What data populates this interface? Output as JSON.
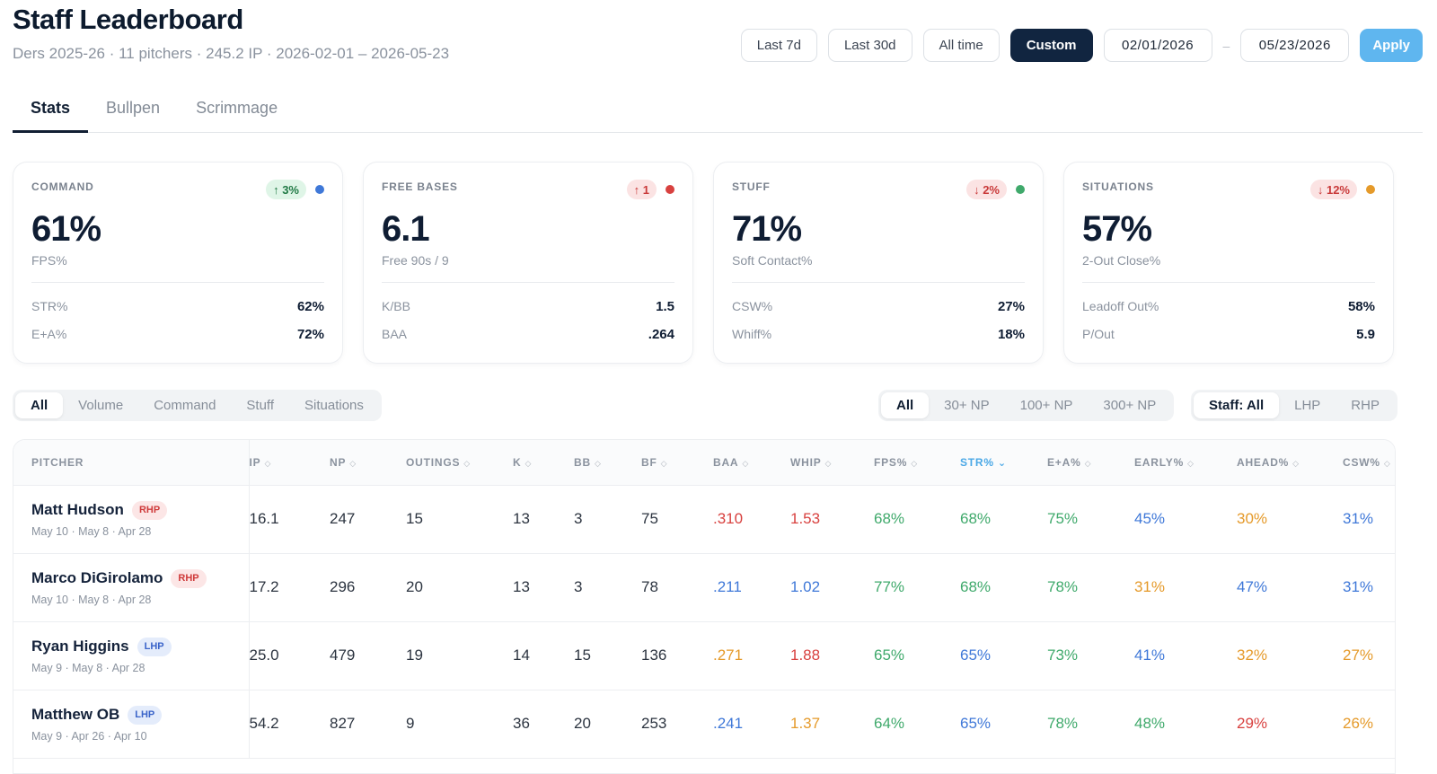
{
  "header": {
    "title": "Staff Leaderboard",
    "subtitle": "Ders 2025-26 · 11 pitchers · 245.2 IP · 2026-02-01 – 2026-05-23"
  },
  "range": {
    "buttons": [
      "Last 7d",
      "Last 30d",
      "All time",
      "Custom"
    ],
    "active": "Custom",
    "start_date": "02/01/2026",
    "separator": "–",
    "end_date": "05/23/2026",
    "apply_label": "Apply"
  },
  "tabs": [
    {
      "label": "Stats",
      "active": true
    },
    {
      "label": "Bullpen",
      "active": false
    },
    {
      "label": "Scrimmage",
      "active": false
    }
  ],
  "cards": [
    {
      "label": "COMMAND",
      "badge": "↑ 3%",
      "badge_kind": "up-green",
      "dot_color": "#3f78d8",
      "value": "61%",
      "sub": "FPS%",
      "rows": [
        {
          "k": "STR%",
          "v": "62%"
        },
        {
          "k": "E+A%",
          "v": "72%"
        }
      ]
    },
    {
      "label": "FREE BASES",
      "badge": "↑ 1",
      "badge_kind": "up-red",
      "dot_color": "#d8413f",
      "value": "6.1",
      "sub": "Free 90s / 9",
      "rows": [
        {
          "k": "K/BB",
          "v": "1.5"
        },
        {
          "k": "BAA",
          "v": ".264"
        }
      ]
    },
    {
      "label": "STUFF",
      "badge": "↓ 2%",
      "badge_kind": "down-red",
      "dot_color": "#3fa96b",
      "value": "71%",
      "sub": "Soft Contact%",
      "rows": [
        {
          "k": "CSW%",
          "v": "27%"
        },
        {
          "k": "Whiff%",
          "v": "18%"
        }
      ]
    },
    {
      "label": "SITUATIONS",
      "badge": "↓ 12%",
      "badge_kind": "down-red",
      "dot_color": "#e59a2a",
      "value": "57%",
      "sub": "2-Out Close%",
      "rows": [
        {
          "k": "Leadoff Out%",
          "v": "58%"
        },
        {
          "k": "P/Out",
          "v": "5.9"
        }
      ]
    }
  ],
  "filters": {
    "category": [
      "All",
      "Volume",
      "Command",
      "Stuff",
      "Situations"
    ],
    "category_active": "All",
    "np": [
      "All",
      "30+ NP",
      "100+ NP",
      "300+ NP"
    ],
    "np_active": "All",
    "staff": [
      "Staff: All",
      "LHP",
      "RHP"
    ],
    "staff_active": "Staff: All"
  },
  "table": {
    "columns": [
      "PITCHER",
      "IP",
      "NP",
      "OUTINGS",
      "K",
      "BB",
      "BF",
      "BAA",
      "WHIP",
      "FPS%",
      "STR%",
      "E+A%",
      "EARLY%",
      "AHEAD%",
      "CSW%"
    ],
    "sorted_column": "STR%",
    "rows": [
      {
        "name": "Matt Hudson",
        "hand": "RHP",
        "dates": "May 10 · May 8 · Apr 28",
        "cells": [
          "16.1",
          "247",
          "15",
          "13",
          "3",
          "75",
          ".310",
          "1.53",
          "68%",
          "68%",
          "75%",
          "45%",
          "30%",
          "31%"
        ],
        "colors": [
          "",
          "",
          "",
          "",
          "",
          "",
          "red",
          "red",
          "green",
          "green",
          "green",
          "blue",
          "orange",
          "blue"
        ]
      },
      {
        "name": "Marco DiGirolamo",
        "hand": "RHP",
        "dates": "May 10 · May 8 · Apr 28",
        "cells": [
          "17.2",
          "296",
          "20",
          "13",
          "3",
          "78",
          ".211",
          "1.02",
          "77%",
          "68%",
          "78%",
          "31%",
          "47%",
          "31%"
        ],
        "colors": [
          "",
          "",
          "",
          "",
          "",
          "",
          "blue",
          "blue",
          "green",
          "green",
          "green",
          "orange",
          "blue",
          "blue"
        ]
      },
      {
        "name": "Ryan Higgins",
        "hand": "LHP",
        "dates": "May 9 · May 8 · Apr 28",
        "cells": [
          "25.0",
          "479",
          "19",
          "14",
          "15",
          "136",
          ".271",
          "1.88",
          "65%",
          "65%",
          "73%",
          "41%",
          "32%",
          "27%"
        ],
        "colors": [
          "",
          "",
          "",
          "",
          "",
          "",
          "orange",
          "red",
          "green",
          "blue",
          "green",
          "blue",
          "orange",
          "orange"
        ]
      },
      {
        "name": "Matthew OB",
        "hand": "LHP",
        "dates": "May 9 · Apr 26 · Apr 10",
        "cells": [
          "54.2",
          "827",
          "9",
          "36",
          "20",
          "253",
          ".241",
          "1.37",
          "64%",
          "65%",
          "78%",
          "48%",
          "29%",
          "26%"
        ],
        "colors": [
          "",
          "",
          "",
          "",
          "",
          "",
          "blue",
          "orange",
          "green",
          "blue",
          "green",
          "green",
          "red",
          "orange"
        ]
      }
    ]
  },
  "colors": {
    "navy": "#112540",
    "accent": "#5fb6ef",
    "green": "#3fa96b",
    "red": "#d8413f",
    "blue": "#3f78d8",
    "orange": "#e59a2a"
  }
}
